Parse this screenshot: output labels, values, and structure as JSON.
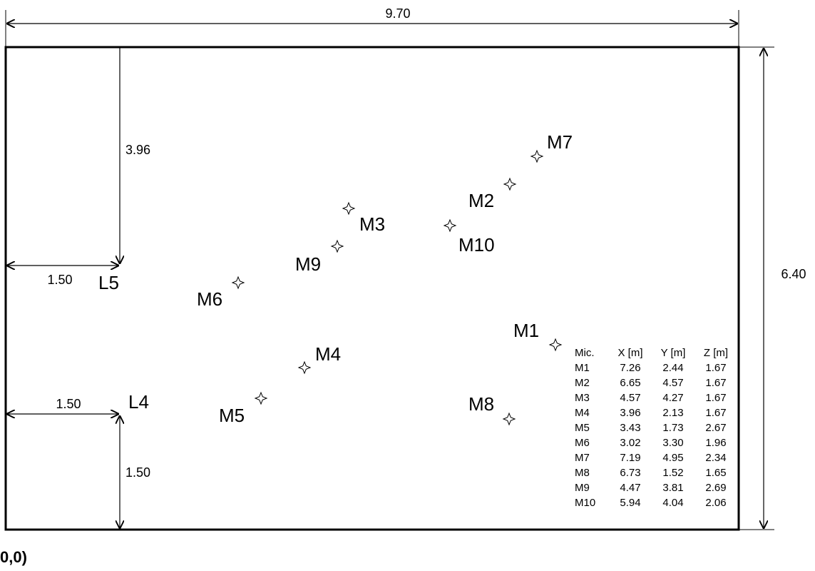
{
  "room": {
    "width_label": "9.70",
    "height_label": "6.40",
    "origin_label": "0,0)"
  },
  "speakers": [
    {
      "label": "L5",
      "x_dim_label": "1.50",
      "y_dim_label": "3.96"
    },
    {
      "label": "L4",
      "x_dim_label": "1.50",
      "y_dim_label": "1.50"
    }
  ],
  "microphones": [
    {
      "label": "M1"
    },
    {
      "label": "M2"
    },
    {
      "label": "M3"
    },
    {
      "label": "M4"
    },
    {
      "label": "M5"
    },
    {
      "label": "M6"
    },
    {
      "label": "M7"
    },
    {
      "label": "M8"
    },
    {
      "label": "M9"
    },
    {
      "label": "M10"
    }
  ],
  "table": {
    "headers": [
      "Mic.",
      "X [m]",
      "Y [m]",
      "Z [m]"
    ],
    "rows": [
      [
        "M1",
        "7.26",
        "2.44",
        "1.67"
      ],
      [
        "M2",
        "6.65",
        "4.57",
        "1.67"
      ],
      [
        "M3",
        "4.57",
        "4.27",
        "1.67"
      ],
      [
        "M4",
        "3.96",
        "2.13",
        "1.67"
      ],
      [
        "M5",
        "3.43",
        "1.73",
        "2.67"
      ],
      [
        "M6",
        "3.02",
        "3.30",
        "1.96"
      ],
      [
        "M7",
        "7.19",
        "4.95",
        "2.34"
      ],
      [
        "M8",
        "6.73",
        "1.52",
        "1.65"
      ],
      [
        "M9",
        "4.47",
        "3.81",
        "2.69"
      ],
      [
        "M10",
        "5.94",
        "4.04",
        "2.06"
      ]
    ]
  }
}
